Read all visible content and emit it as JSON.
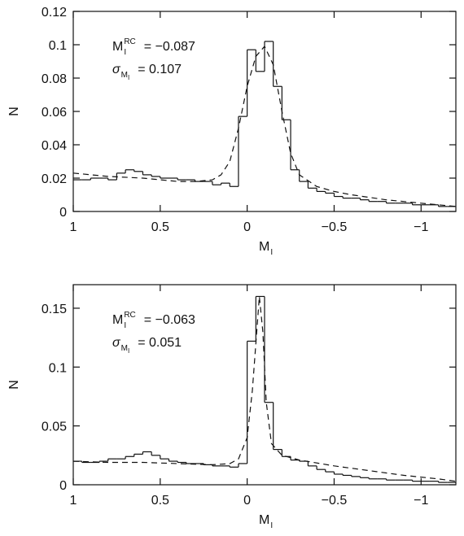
{
  "chart_data": [
    {
      "type": "histogram",
      "bins": [
        1,
        0.95,
        0.9,
        0.85,
        0.8,
        0.75,
        0.7,
        0.65,
        0.6,
        0.55,
        0.5,
        0.45,
        0.4,
        0.35,
        0.3,
        0.25,
        0.2,
        0.15,
        0.1,
        0.05,
        0,
        -0.05,
        -0.1,
        -0.15,
        -0.2,
        -0.25,
        -0.3,
        -0.35,
        -0.4,
        -0.45,
        -0.5,
        -0.55,
        -0.6,
        -0.65,
        -0.7,
        -0.75,
        -0.8,
        -0.85,
        -0.9,
        -0.95,
        -1,
        -1.05,
        -1.1,
        -1.15,
        -1.2
      ],
      "values": [
        0.019,
        0.019,
        0.02,
        0.02,
        0.019,
        0.023,
        0.025,
        0.024,
        0.022,
        0.021,
        0.02,
        0.02,
        0.019,
        0.019,
        0.018,
        0.018,
        0.016,
        0.017,
        0.015,
        0.057,
        0.097,
        0.084,
        0.102,
        0.075,
        0.055,
        0.025,
        0.018,
        0.014,
        0.012,
        0.011,
        0.009,
        0.008,
        0.008,
        0.007,
        0.006,
        0.006,
        0.005,
        0.005,
        0.005,
        0.004,
        0.004,
        0.004,
        0.003,
        0.003
      ],
      "fit_x": [
        1,
        0.8,
        0.6,
        0.4,
        0.3,
        0.2,
        0.15,
        0.1,
        0.05,
        0,
        -0.05,
        -0.1,
        -0.15,
        -0.2,
        -0.25,
        -0.3,
        -0.4,
        -0.5,
        -0.6,
        -0.8,
        -1,
        -1.2
      ],
      "fit_values": [
        0.023,
        0.021,
        0.02,
        0.018,
        0.018,
        0.019,
        0.022,
        0.03,
        0.05,
        0.075,
        0.093,
        0.099,
        0.088,
        0.06,
        0.035,
        0.022,
        0.015,
        0.012,
        0.01,
        0.007,
        0.005,
        0.003
      ],
      "xlim": [
        1,
        -1.2
      ],
      "ylim": [
        0,
        0.12
      ],
      "xticks": [
        1,
        0.5,
        0,
        {
          "value": -0.5,
          "label": "−0.5"
        },
        {
          "value": -1,
          "label": "−1"
        }
      ],
      "yticks": [
        0,
        0.02,
        0.04,
        0.06,
        0.08,
        0.1,
        0.12
      ],
      "xlabel": {
        "symbol": "M",
        "sub": "I"
      },
      "ylabel": "N",
      "annotations": [
        {
          "symbol": "M",
          "sub": "I",
          "sup": "RC",
          "text": "= −0.087"
        },
        {
          "symbol": "σ",
          "sub": "M",
          "subsub": "I",
          "text": "= 0.107"
        }
      ]
    },
    {
      "type": "histogram",
      "bins": [
        1,
        0.95,
        0.9,
        0.85,
        0.8,
        0.75,
        0.7,
        0.65,
        0.6,
        0.55,
        0.5,
        0.45,
        0.4,
        0.35,
        0.3,
        0.25,
        0.2,
        0.15,
        0.1,
        0.05,
        0,
        -0.05,
        -0.1,
        -0.15,
        -0.2,
        -0.25,
        -0.3,
        -0.35,
        -0.4,
        -0.45,
        -0.5,
        -0.55,
        -0.6,
        -0.65,
        -0.7,
        -0.75,
        -0.8,
        -0.85,
        -0.9,
        -0.95,
        -1,
        -1.05,
        -1.1,
        -1.15,
        -1.2
      ],
      "values": [
        0.02,
        0.019,
        0.019,
        0.02,
        0.022,
        0.022,
        0.024,
        0.026,
        0.028,
        0.025,
        0.022,
        0.02,
        0.019,
        0.018,
        0.018,
        0.017,
        0.016,
        0.016,
        0.015,
        0.018,
        0.122,
        0.16,
        0.07,
        0.03,
        0.024,
        0.021,
        0.02,
        0.016,
        0.013,
        0.011,
        0.009,
        0.008,
        0.007,
        0.006,
        0.005,
        0.005,
        0.004,
        0.004,
        0.004,
        0.003,
        0.003,
        0.003,
        0.002,
        0.002
      ],
      "fit_x": [
        1,
        0.8,
        0.6,
        0.4,
        0.2,
        0.1,
        0.05,
        0,
        -0.03,
        -0.05,
        -0.07,
        -0.09,
        -0.11,
        -0.14,
        -0.2,
        -0.3,
        -0.5,
        -0.7,
        -0.9,
        -1.1,
        -1.2
      ],
      "fit_values": [
        0.02,
        0.019,
        0.019,
        0.018,
        0.017,
        0.018,
        0.022,
        0.04,
        0.08,
        0.12,
        0.16,
        0.13,
        0.07,
        0.035,
        0.025,
        0.021,
        0.016,
        0.012,
        0.008,
        0.005,
        0.003
      ],
      "xlim": [
        1,
        -1.2
      ],
      "ylim": [
        0,
        0.17
      ],
      "xticks": [
        1,
        0.5,
        0,
        {
          "value": -0.5,
          "label": "−0.5"
        },
        {
          "value": -1,
          "label": "−1"
        }
      ],
      "yticks": [
        0,
        0.05,
        0.1,
        0.15
      ],
      "xlabel": {
        "symbol": "M",
        "sub": "I"
      },
      "ylabel": "N",
      "annotations": [
        {
          "symbol": "M",
          "sub": "I",
          "sup": "RC",
          "text": "= −0.063"
        },
        {
          "symbol": "σ",
          "sub": "M",
          "subsub": "I",
          "text": "= 0.051"
        }
      ]
    }
  ]
}
